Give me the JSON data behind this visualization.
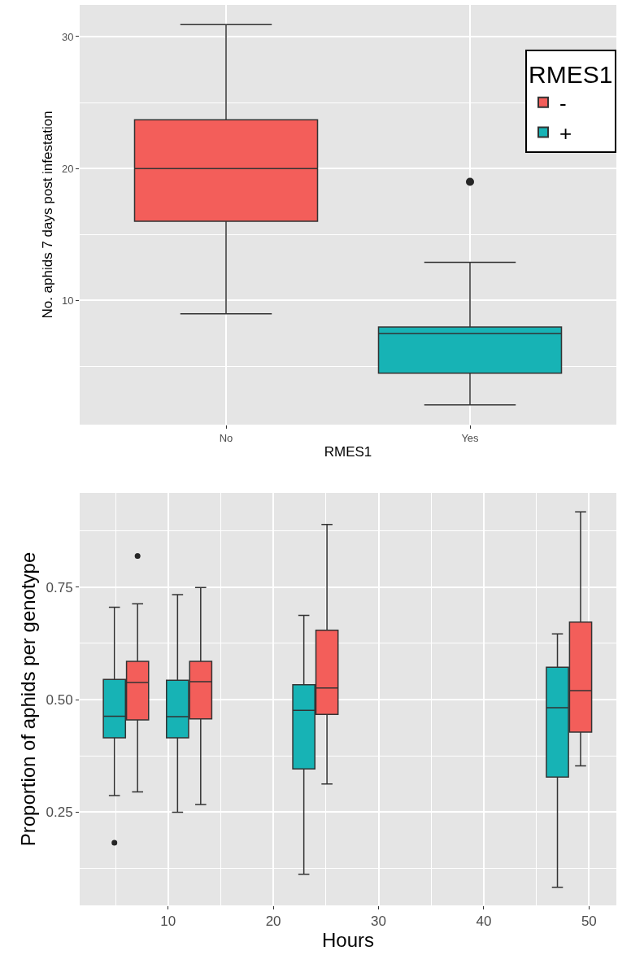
{
  "chart_data": [
    {
      "type": "box",
      "categories": [
        "No",
        "Yes"
      ],
      "xlabel": "RMES1",
      "ylabel": "No. aphids 7 days post infestation",
      "legend_title": "RMES1",
      "legend": "top right",
      "grid": true,
      "ylim": [
        0.6,
        32.4
      ],
      "yticks": [
        10,
        20,
        30
      ],
      "series": [
        {
          "name": "-",
          "color": "#f35e5a",
          "boxes": [
            {
              "low": 9.0,
              "q1": 16.0,
              "median": 20.0,
              "q3": 23.7,
              "high": 30.9
            },
            null
          ]
        },
        {
          "name": "+",
          "color": "#17b3b5",
          "boxes": [
            null,
            {
              "low": 2.1,
              "q1": 4.5,
              "median": 7.5,
              "q3": 8.0,
              "high": 12.9,
              "outliers": [
                19.0
              ]
            }
          ]
        }
      ]
    },
    {
      "type": "box",
      "xlabel": "Hours",
      "ylabel": "Proportion of aphids per genotype",
      "grid": true,
      "xlim": [
        1.6,
        52.6
      ],
      "xticks": [
        10,
        20,
        30,
        40,
        50
      ],
      "ylim": [
        0.043,
        0.959
      ],
      "yticks": [
        {
          "value": 0.25,
          "label": "0.25"
        },
        {
          "value": 0.5,
          "label": "0.50"
        },
        {
          "value": 0.75,
          "label": "0.75"
        }
      ],
      "series": [
        {
          "color": "#17b3b5",
          "x": [
            4.9,
            10.9,
            22.9,
            47.0
          ],
          "boxes": [
            {
              "low": 0.287,
              "q1": 0.415,
              "median": 0.463,
              "q3": 0.545,
              "high": 0.705,
              "outliers": [
                0.182
              ]
            },
            {
              "low": 0.25,
              "q1": 0.415,
              "median": 0.462,
              "q3": 0.543,
              "high": 0.733
            },
            {
              "low": 0.112,
              "q1": 0.346,
              "median": 0.476,
              "q3": 0.533,
              "high": 0.687
            },
            {
              "low": 0.083,
              "q1": 0.328,
              "median": 0.482,
              "q3": 0.572,
              "high": 0.646
            }
          ]
        },
        {
          "color": "#f35e5a",
          "x": [
            7.1,
            13.1,
            25.1,
            49.2
          ],
          "boxes": [
            {
              "low": 0.295,
              "q1": 0.455,
              "median": 0.538,
              "q3": 0.585,
              "high": 0.713,
              "outliers": [
                0.819
              ]
            },
            {
              "low": 0.267,
              "q1": 0.457,
              "median": 0.54,
              "q3": 0.585,
              "high": 0.749
            },
            {
              "low": 0.3125,
              "q1": 0.467,
              "median": 0.526,
              "q3": 0.654,
              "high": 0.889
            },
            {
              "low": 0.353,
              "q1": 0.428,
              "median": 0.52,
              "q3": 0.672,
              "high": 0.917
            }
          ]
        }
      ]
    }
  ]
}
